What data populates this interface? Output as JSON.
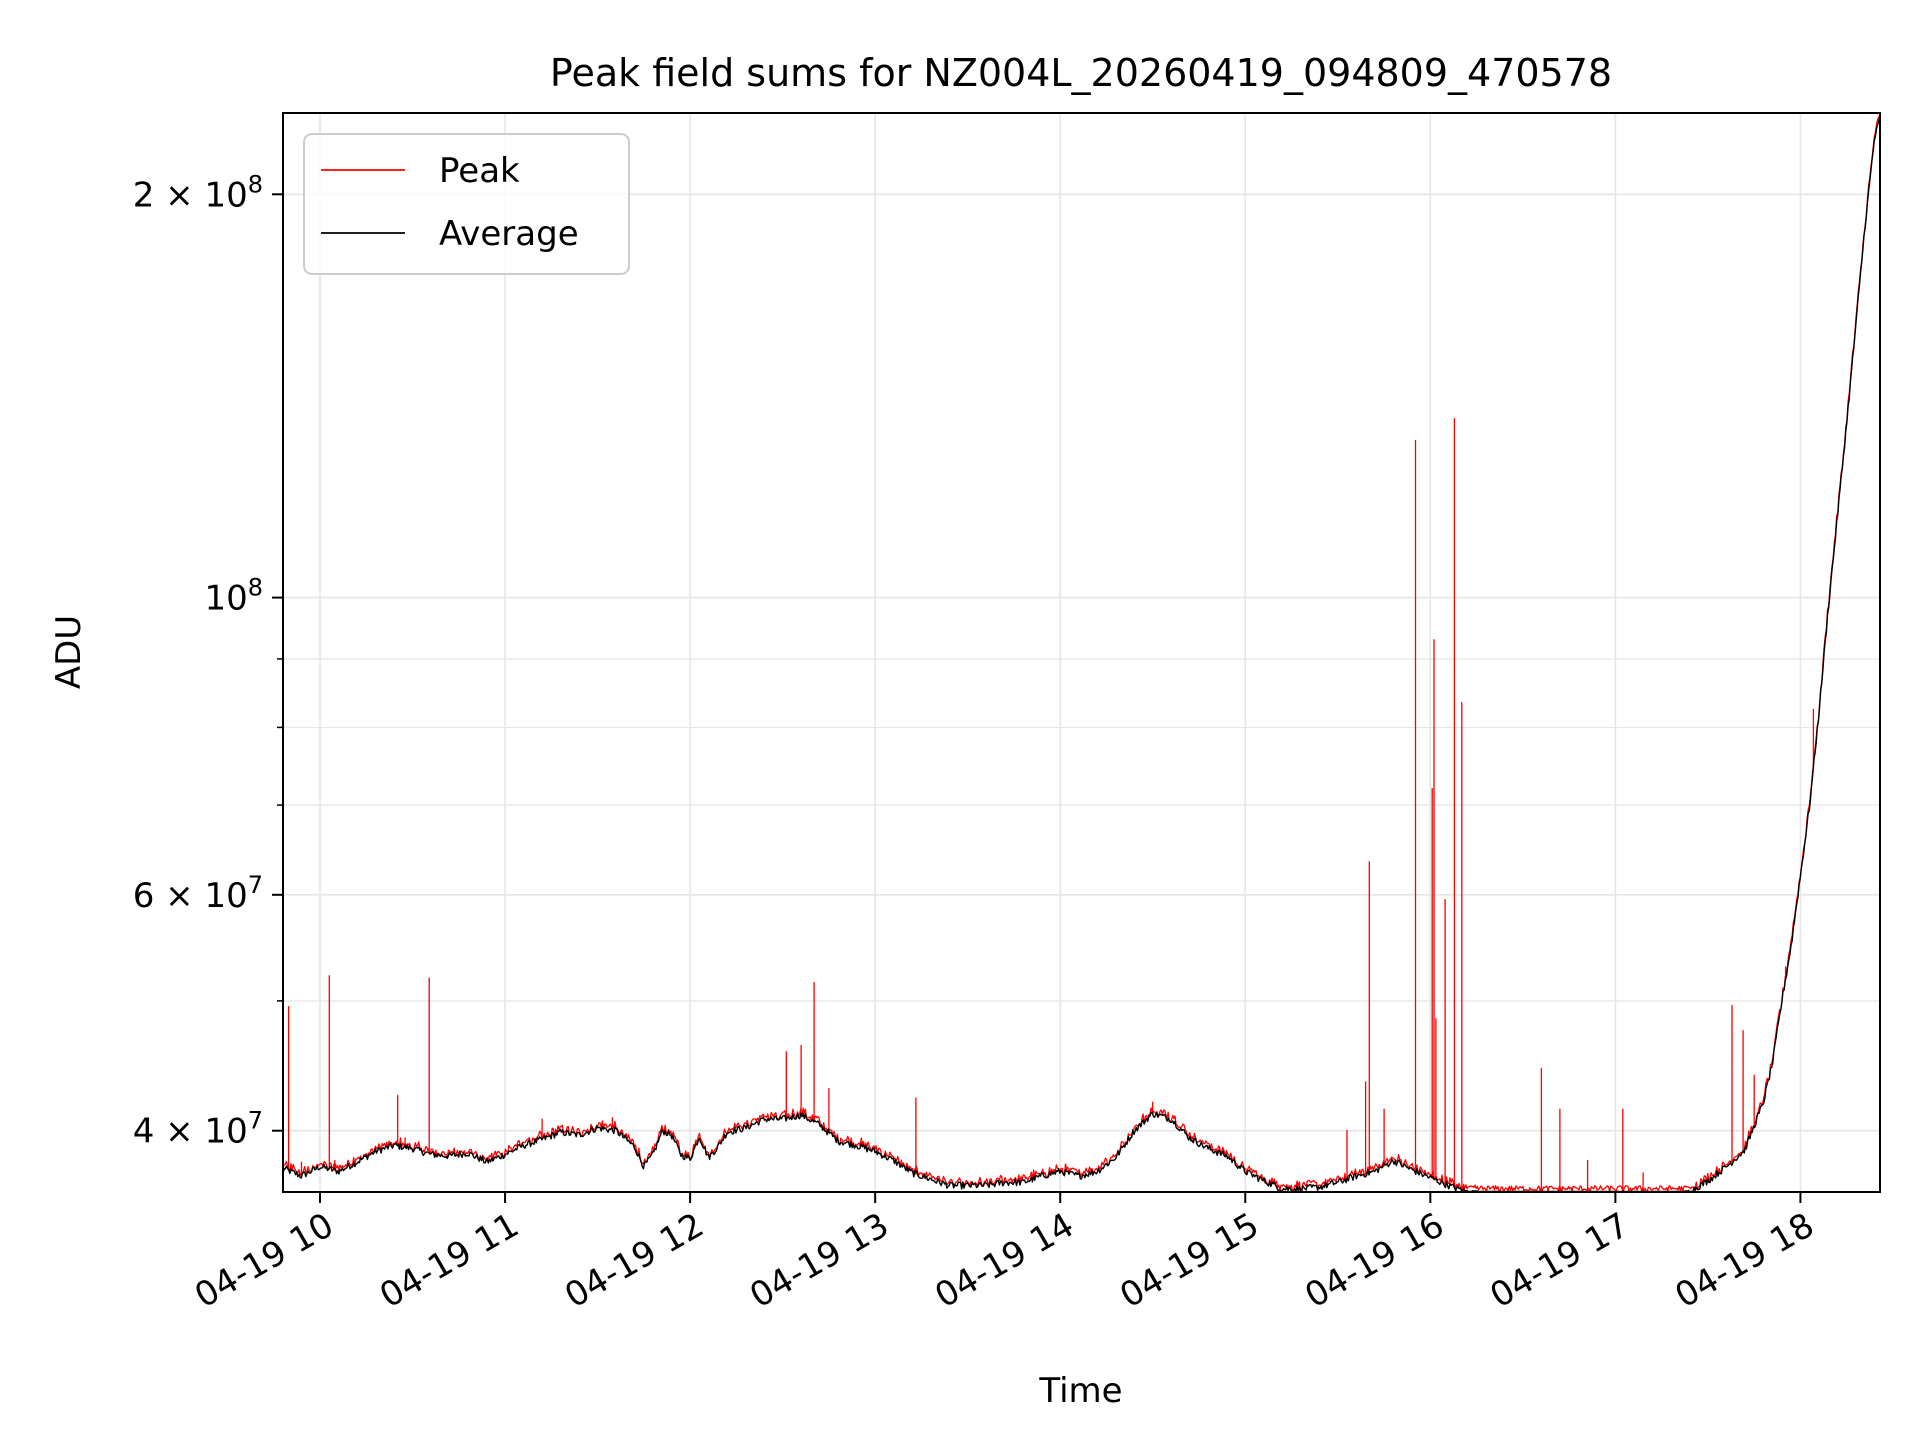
{
  "chart_data": {
    "type": "line",
    "title": "Peak field sums for NZ004L_20260419_094809_470578",
    "xlabel": "Time",
    "ylabel": "ADU",
    "x_unit": "hour of 2026-04-19",
    "xlim": [
      9.8,
      18.43
    ],
    "ylim": [
      36000000,
      230000000
    ],
    "yscale": "log",
    "grid": true,
    "legend_position": "top-left",
    "x_ticks": [
      {
        "value": 10,
        "label": "04-19 10"
      },
      {
        "value": 11,
        "label": "04-19 11"
      },
      {
        "value": 12,
        "label": "04-19 12"
      },
      {
        "value": 13,
        "label": "04-19 13"
      },
      {
        "value": 14,
        "label": "04-19 14"
      },
      {
        "value": 15,
        "label": "04-19 15"
      },
      {
        "value": 16,
        "label": "04-19 16"
      },
      {
        "value": 17,
        "label": "04-19 17"
      },
      {
        "value": 18,
        "label": "04-19 18"
      }
    ],
    "y_major_ticks": [
      {
        "value": 40000000,
        "mantissa": "4",
        "exp": "7"
      },
      {
        "value": 60000000,
        "mantissa": "6",
        "exp": "7"
      },
      {
        "value": 100000000,
        "mantissa": "",
        "exp": "8"
      },
      {
        "value": 200000000,
        "mantissa": "2",
        "exp": "8"
      }
    ],
    "y_minor_ticks": [
      50000000,
      70000000,
      80000000,
      90000000
    ],
    "series": [
      {
        "name": "Average",
        "color": "#000000",
        "x": [
          9.8,
          9.9,
          10.0,
          10.1,
          10.2,
          10.3,
          10.4,
          10.5,
          10.6,
          10.7,
          10.8,
          10.9,
          11.0,
          11.1,
          11.2,
          11.3,
          11.4,
          11.5,
          11.6,
          11.7,
          11.75,
          11.8,
          11.85,
          11.9,
          11.95,
          12.0,
          12.05,
          12.1,
          12.15,
          12.2,
          12.3,
          12.4,
          12.5,
          12.6,
          12.7,
          12.8,
          12.9,
          13.0,
          13.1,
          13.2,
          13.3,
          13.4,
          13.5,
          13.6,
          13.7,
          13.8,
          13.9,
          14.0,
          14.1,
          14.2,
          14.3,
          14.4,
          14.5,
          14.6,
          14.7,
          14.8,
          14.9,
          15.0,
          15.1,
          15.2,
          15.3,
          15.4,
          15.5,
          15.6,
          15.7,
          15.8,
          15.9,
          16.0,
          16.1,
          16.2,
          16.3,
          16.4,
          16.5,
          16.6,
          16.7,
          16.8,
          16.9,
          17.0,
          17.1,
          17.2,
          17.3,
          17.4,
          17.5,
          17.6,
          17.7,
          17.8,
          17.85,
          17.9,
          17.95,
          18.0,
          18.05,
          18.1,
          18.15,
          18.2,
          18.25,
          18.3,
          18.35,
          18.4,
          18.43
        ],
        "y": [
          37500000,
          37000000,
          37600000,
          37300000,
          37900000,
          38600000,
          39000000,
          38800000,
          38400000,
          38300000,
          38500000,
          37900000,
          38400000,
          39000000,
          39400000,
          39900000,
          39700000,
          40200000,
          40000000,
          38900000,
          37600000,
          38400000,
          40000000,
          39700000,
          38400000,
          38100000,
          39600000,
          38200000,
          38900000,
          39900000,
          40200000,
          40800000,
          40800000,
          41100000,
          40400000,
          39300000,
          39000000,
          38600000,
          38000000,
          37200000,
          36800000,
          36400000,
          36400000,
          36400000,
          36600000,
          36600000,
          37000000,
          37300000,
          37000000,
          37300000,
          38200000,
          40000000,
          41200000,
          40800000,
          39500000,
          38800000,
          38300000,
          37300000,
          36700000,
          36200000,
          36200000,
          36300000,
          36600000,
          37000000,
          37300000,
          38000000,
          37400000,
          36900000,
          36400000,
          36000000,
          35800000,
          35800000,
          35700000,
          35600000,
          35600000,
          35500000,
          35500000,
          35400000,
          35200000,
          35400000,
          35600000,
          36000000,
          36700000,
          37600000,
          38700000,
          42000000,
          45000000,
          50000000,
          55000000,
          62000000,
          70000000,
          82000000,
          98000000,
          115000000,
          135000000,
          160000000,
          190000000,
          220000000,
          228000000
        ]
      },
      {
        "name": "Peak",
        "color": "#ff0000",
        "spikes": [
          {
            "x": 9.83,
            "y": 49500000
          },
          {
            "x": 9.9,
            "y": 37900000
          },
          {
            "x": 10.05,
            "y": 52200000
          },
          {
            "x": 10.08,
            "y": 38000000
          },
          {
            "x": 10.42,
            "y": 42500000
          },
          {
            "x": 10.46,
            "y": 39500000
          },
          {
            "x": 10.59,
            "y": 52000000
          },
          {
            "x": 11.2,
            "y": 40800000
          },
          {
            "x": 11.58,
            "y": 40900000
          },
          {
            "x": 12.52,
            "y": 45800000
          },
          {
            "x": 12.6,
            "y": 46300000
          },
          {
            "x": 12.67,
            "y": 51600000
          },
          {
            "x": 12.75,
            "y": 43000000
          },
          {
            "x": 13.22,
            "y": 42300000
          },
          {
            "x": 14.5,
            "y": 42000000
          },
          {
            "x": 15.55,
            "y": 40000000
          },
          {
            "x": 15.65,
            "y": 43500000
          },
          {
            "x": 15.67,
            "y": 63500000
          },
          {
            "x": 15.75,
            "y": 41500000
          },
          {
            "x": 15.92,
            "y": 131000000
          },
          {
            "x": 16.01,
            "y": 72000000
          },
          {
            "x": 16.02,
            "y": 93000000
          },
          {
            "x": 16.03,
            "y": 48500000
          },
          {
            "x": 16.08,
            "y": 59500000
          },
          {
            "x": 16.13,
            "y": 136000000
          },
          {
            "x": 16.17,
            "y": 83500000
          },
          {
            "x": 16.6,
            "y": 44500000
          },
          {
            "x": 16.7,
            "y": 41500000
          },
          {
            "x": 16.85,
            "y": 38000000
          },
          {
            "x": 17.04,
            "y": 41500000
          },
          {
            "x": 17.15,
            "y": 37200000
          },
          {
            "x": 17.63,
            "y": 49600000
          },
          {
            "x": 17.69,
            "y": 47500000
          },
          {
            "x": 17.75,
            "y": 44000000
          },
          {
            "x": 17.92,
            "y": 53000000
          },
          {
            "x": 18.07,
            "y": 82500000
          }
        ]
      }
    ]
  }
}
